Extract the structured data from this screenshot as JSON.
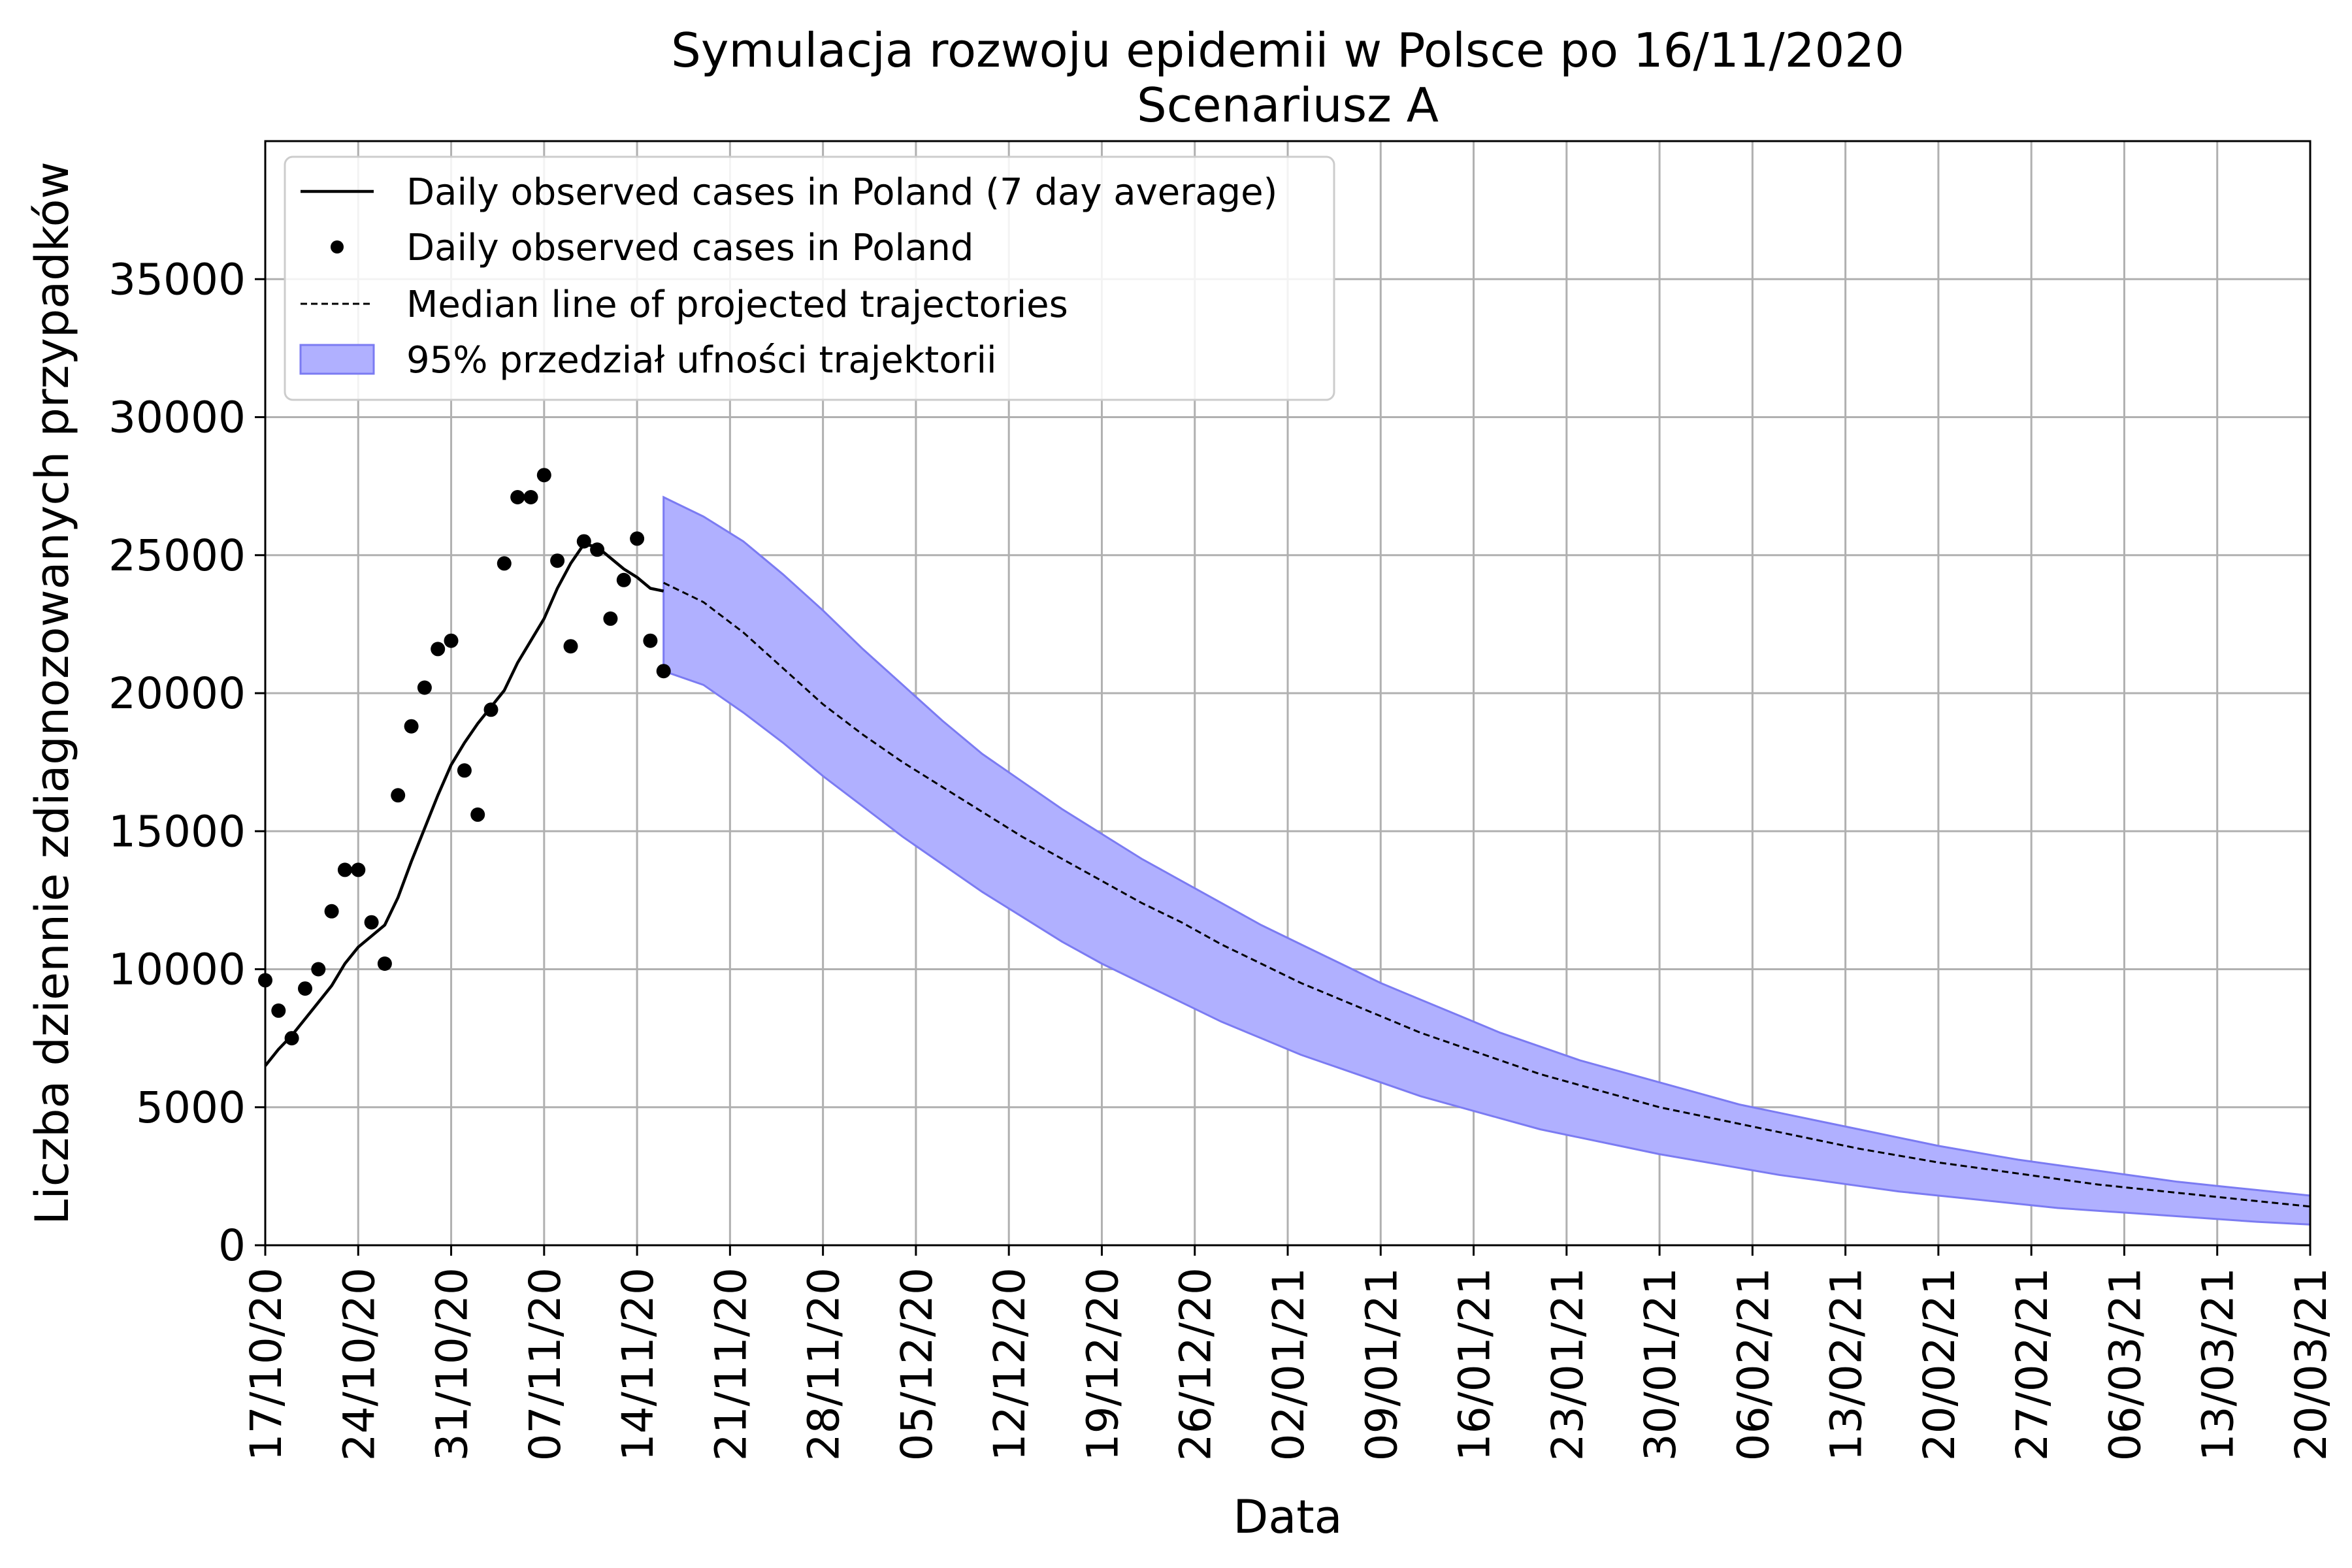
{
  "chart_data": {
    "type": "line",
    "title": "Symulacja rozwoju epidemii w Polsce po 16/11/2020",
    "subtitle": "Scenariusz A",
    "xlabel": "Data",
    "ylabel": "Liczba dziennie zdiagnozowanych przypadków",
    "ylim": [
      0,
      40000
    ],
    "xlim": [
      "2020-10-17",
      "2021-03-20"
    ],
    "grid": true,
    "legend_position": "top-left",
    "y_ticks": [
      0,
      5000,
      10000,
      15000,
      20000,
      25000,
      30000,
      35000
    ],
    "y_tick_labels": [
      "0",
      "5000",
      "10000",
      "15000",
      "20000",
      "25000",
      "30000",
      "35000"
    ],
    "x_ticks": [
      "2020-10-17",
      "2020-10-24",
      "2020-10-31",
      "2020-11-07",
      "2020-11-14",
      "2020-11-21",
      "2020-11-28",
      "2020-12-05",
      "2020-12-12",
      "2020-12-19",
      "2020-12-26",
      "2021-01-02",
      "2021-01-09",
      "2021-01-16",
      "2021-01-23",
      "2021-01-30",
      "2021-02-06",
      "2021-02-13",
      "2021-02-20",
      "2021-02-27",
      "2021-03-06",
      "2021-03-13",
      "2021-03-20"
    ],
    "x_tick_labels": [
      "17/10/20",
      "24/10/20",
      "31/10/20",
      "07/11/20",
      "14/11/20",
      "21/11/20",
      "28/11/20",
      "05/12/20",
      "12/12/20",
      "19/12/20",
      "26/12/20",
      "02/01/21",
      "09/01/21",
      "16/01/21",
      "23/01/21",
      "30/01/21",
      "06/02/21",
      "13/02/21",
      "20/02/21",
      "27/02/21",
      "06/03/21",
      "13/03/21",
      "20/03/21"
    ],
    "legend": [
      {
        "label": "Daily observed cases in Poland (7 day average)",
        "style": "solid-line"
      },
      {
        "label": "Daily observed cases in Poland",
        "style": "dot"
      },
      {
        "label": "Median line of projected trajectories",
        "style": "dashed-line"
      },
      {
        "label": "95% przedział ufności trajektorii",
        "style": "band"
      }
    ],
    "colors": {
      "observed": "#000000",
      "band_fill": "#b0b0ff",
      "band_edge": "#7b7bf2",
      "grid": "#b0b0b0"
    },
    "observed_daily": {
      "x": [
        "2020-10-17",
        "2020-10-18",
        "2020-10-19",
        "2020-10-20",
        "2020-10-21",
        "2020-10-22",
        "2020-10-23",
        "2020-10-24",
        "2020-10-25",
        "2020-10-26",
        "2020-10-27",
        "2020-10-28",
        "2020-10-29",
        "2020-10-30",
        "2020-10-31",
        "2020-11-01",
        "2020-11-02",
        "2020-11-03",
        "2020-11-04",
        "2020-11-05",
        "2020-11-06",
        "2020-11-07",
        "2020-11-08",
        "2020-11-09",
        "2020-11-10",
        "2020-11-11",
        "2020-11-12",
        "2020-11-13",
        "2020-11-14",
        "2020-11-15",
        "2020-11-16"
      ],
      "y": [
        9600,
        8500,
        7500,
        9300,
        10000,
        12100,
        13600,
        13600,
        11700,
        10200,
        16300,
        18800,
        20200,
        21600,
        21900,
        17200,
        15600,
        19400,
        24700,
        27100,
        27100,
        27900,
        24800,
        21700,
        25500,
        25200,
        22700,
        24100,
        25600,
        21900,
        20800
      ]
    },
    "observed_7day_avg": {
      "x": [
        "2020-10-17",
        "2020-10-18",
        "2020-10-19",
        "2020-10-20",
        "2020-10-21",
        "2020-10-22",
        "2020-10-23",
        "2020-10-24",
        "2020-10-25",
        "2020-10-26",
        "2020-10-27",
        "2020-10-28",
        "2020-10-29",
        "2020-10-30",
        "2020-10-31",
        "2020-11-01",
        "2020-11-02",
        "2020-11-03",
        "2020-11-04",
        "2020-11-05",
        "2020-11-06",
        "2020-11-07",
        "2020-11-08",
        "2020-11-09",
        "2020-11-10",
        "2020-11-11",
        "2020-11-12",
        "2020-11-13",
        "2020-11-14",
        "2020-11-15",
        "2020-11-16"
      ],
      "y": [
        6500,
        7100,
        7600,
        8200,
        8800,
        9400,
        10200,
        10800,
        11200,
        11600,
        12600,
        13900,
        15100,
        16300,
        17400,
        18200,
        18900,
        19500,
        20100,
        21100,
        21900,
        22700,
        23800,
        24700,
        25400,
        25300,
        24900,
        24500,
        24200,
        23800,
        23700
      ]
    },
    "projection_median": {
      "x": [
        "2020-11-16",
        "2020-11-19",
        "2020-11-22",
        "2020-11-25",
        "2020-11-28",
        "2020-12-01",
        "2020-12-04",
        "2020-12-07",
        "2020-12-10",
        "2020-12-13",
        "2020-12-16",
        "2020-12-19",
        "2020-12-22",
        "2020-12-25",
        "2020-12-28",
        "2020-12-31",
        "2021-01-03",
        "2021-01-06",
        "2021-01-09",
        "2021-01-12",
        "2021-01-15",
        "2021-01-18",
        "2021-01-21",
        "2021-01-24",
        "2021-01-27",
        "2021-01-30",
        "2021-02-02",
        "2021-02-05",
        "2021-02-08",
        "2021-02-11",
        "2021-02-14",
        "2021-02-17",
        "2021-02-20",
        "2021-02-23",
        "2021-02-26",
        "2021-03-01",
        "2021-03-04",
        "2021-03-07",
        "2021-03-10",
        "2021-03-13",
        "2021-03-16",
        "2021-03-20"
      ],
      "y": [
        24000,
        23300,
        22200,
        20900,
        19600,
        18500,
        17500,
        16600,
        15700,
        14800,
        14000,
        13200,
        12400,
        11700,
        10900,
        10200,
        9500,
        8900,
        8300,
        7700,
        7200,
        6700,
        6200,
        5800,
        5400,
        5000,
        4700,
        4400,
        4100,
        3800,
        3500,
        3250,
        3000,
        2800,
        2600,
        2400,
        2200,
        2050,
        1900,
        1750,
        1600,
        1400
      ]
    },
    "projection_upper_95": {
      "x": [
        "2020-11-16",
        "2020-11-19",
        "2020-11-22",
        "2020-11-25",
        "2020-11-28",
        "2020-12-01",
        "2020-12-04",
        "2020-12-07",
        "2020-12-10",
        "2020-12-13",
        "2020-12-16",
        "2020-12-19",
        "2020-12-22",
        "2020-12-25",
        "2020-12-28",
        "2020-12-31",
        "2021-01-03",
        "2021-01-06",
        "2021-01-09",
        "2021-01-12",
        "2021-01-15",
        "2021-01-18",
        "2021-01-21",
        "2021-01-24",
        "2021-01-27",
        "2021-01-30",
        "2021-02-02",
        "2021-02-05",
        "2021-02-08",
        "2021-02-11",
        "2021-02-14",
        "2021-02-17",
        "2021-02-20",
        "2021-02-23",
        "2021-02-26",
        "2021-03-01",
        "2021-03-04",
        "2021-03-07",
        "2021-03-10",
        "2021-03-13",
        "2021-03-16",
        "2021-03-20"
      ],
      "y": [
        27100,
        26400,
        25500,
        24300,
        23000,
        21600,
        20300,
        19000,
        17800,
        16800,
        15800,
        14900,
        14000,
        13200,
        12400,
        11600,
        10900,
        10200,
        9500,
        8900,
        8300,
        7700,
        7200,
        6700,
        6300,
        5900,
        5500,
        5100,
        4800,
        4500,
        4200,
        3900,
        3600,
        3350,
        3100,
        2900,
        2700,
        2500,
        2300,
        2150,
        2000,
        1800
      ]
    },
    "projection_lower_95": {
      "x": [
        "2020-11-16",
        "2020-11-19",
        "2020-11-22",
        "2020-11-25",
        "2020-11-28",
        "2020-12-01",
        "2020-12-04",
        "2020-12-07",
        "2020-12-10",
        "2020-12-13",
        "2020-12-16",
        "2020-12-19",
        "2020-12-22",
        "2020-12-25",
        "2020-12-28",
        "2020-12-31",
        "2021-01-03",
        "2021-01-06",
        "2021-01-09",
        "2021-01-12",
        "2021-01-15",
        "2021-01-18",
        "2021-01-21",
        "2021-01-24",
        "2021-01-27",
        "2021-01-30",
        "2021-02-02",
        "2021-02-05",
        "2021-02-08",
        "2021-02-11",
        "2021-02-14",
        "2021-02-17",
        "2021-02-20",
        "2021-02-23",
        "2021-02-26",
        "2021-03-01",
        "2021-03-04",
        "2021-03-07",
        "2021-03-10",
        "2021-03-13",
        "2021-03-16",
        "2021-03-20"
      ],
      "y": [
        20800,
        20300,
        19300,
        18200,
        17000,
        15900,
        14800,
        13800,
        12800,
        11900,
        11000,
        10200,
        9500,
        8800,
        8100,
        7500,
        6900,
        6400,
        5900,
        5400,
        5000,
        4600,
        4200,
        3900,
        3600,
        3300,
        3050,
        2800,
        2550,
        2350,
        2150,
        1950,
        1800,
        1650,
        1500,
        1350,
        1250,
        1150,
        1050,
        950,
        850,
        750
      ]
    }
  }
}
